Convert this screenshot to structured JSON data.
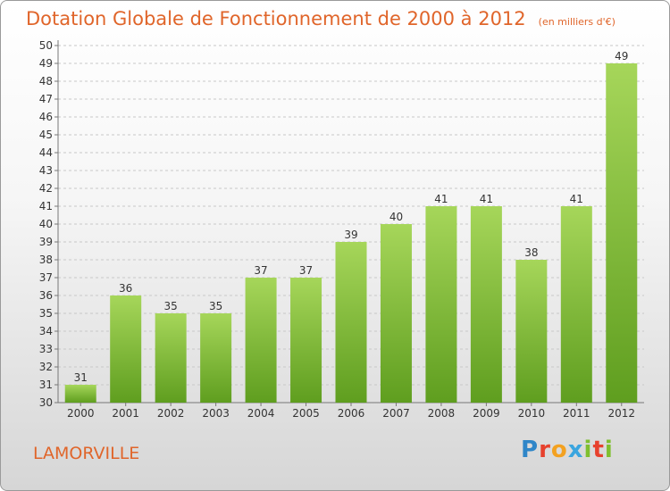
{
  "title": "Dotation Globale de Fonctionnement de 2000 à 2012",
  "unit_note": "(en milliers d'€)",
  "commune": "LAMORVILLE",
  "logo": {
    "text": "Proxiti",
    "letters": [
      "P",
      "r",
      "o",
      "x",
      "i",
      "t",
      "i"
    ]
  },
  "colors": {
    "bar_top": "#a6d65a",
    "bar_bottom": "#5f9e1f",
    "title": "#e0652a",
    "grid": "#c8c8c8"
  },
  "chart_data": {
    "type": "bar",
    "title": "Dotation Globale de Fonctionnement de 2000 à 2012",
    "subtitle": "(en milliers d'€)",
    "categories": [
      "2000",
      "2001",
      "2002",
      "2003",
      "2004",
      "2005",
      "2006",
      "2007",
      "2008",
      "2009",
      "2010",
      "2011",
      "2012"
    ],
    "values": [
      31,
      36,
      35,
      35,
      37,
      37,
      39,
      40,
      41,
      41,
      38,
      41,
      49
    ],
    "ylim": [
      30,
      50
    ],
    "yticks": [
      30,
      31,
      32,
      33,
      34,
      35,
      36,
      37,
      38,
      39,
      40,
      41,
      42,
      43,
      44,
      45,
      46,
      47,
      48,
      49,
      50
    ],
    "grid": true,
    "data_labels": true
  }
}
